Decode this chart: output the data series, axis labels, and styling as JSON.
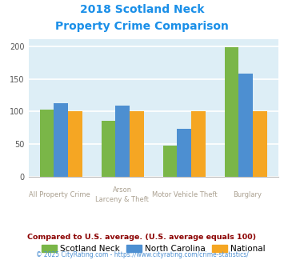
{
  "title_line1": "2018 Scotland Neck",
  "title_line2": "Property Crime Comparison",
  "title_color": "#1a8fe8",
  "cat_labels_top": [
    "All Property Crime",
    "Arson",
    "Motor Vehicle Theft",
    "Burglary"
  ],
  "cat_labels_bot": [
    "",
    "Larceny & Theft",
    "",
    ""
  ],
  "scotland_neck": [
    103,
    86,
    48,
    198
  ],
  "north_carolina": [
    113,
    109,
    74,
    158
  ],
  "national": [
    100,
    100,
    100,
    100
  ],
  "scotland_neck_color": "#7ab648",
  "north_carolina_color": "#4d8fd1",
  "national_color": "#f5a623",
  "ylim": [
    0,
    210
  ],
  "yticks": [
    0,
    50,
    100,
    150,
    200
  ],
  "background_color": "#ddeef6",
  "grid_color": "#ffffff",
  "legend_labels": [
    "Scotland Neck",
    "North Carolina",
    "National"
  ],
  "footnote": "Compared to U.S. average. (U.S. average equals 100)",
  "footnote2": "© 2025 CityRating.com - https://www.cityrating.com/crime-statistics/",
  "footnote_color": "#8b0000",
  "footnote2_color": "#4d8fd1",
  "xlabel_color": "#aaa090"
}
